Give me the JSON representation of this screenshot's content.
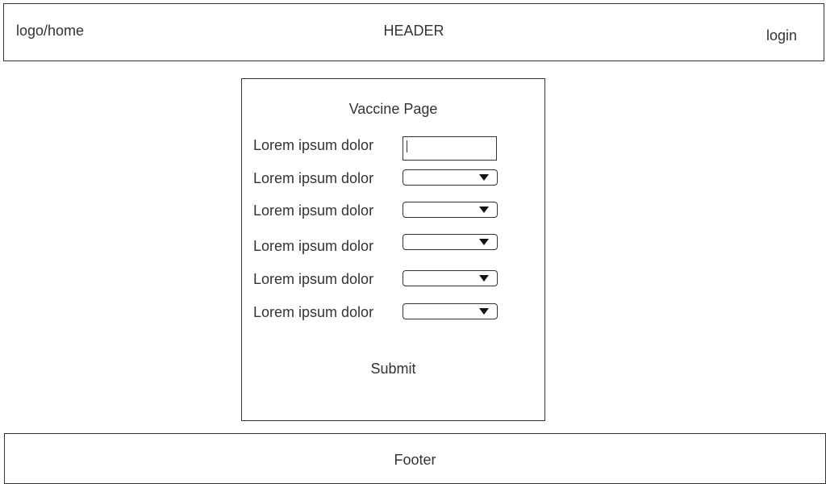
{
  "header": {
    "logo_label": "logo/home",
    "title": "HEADER",
    "login_label": "login"
  },
  "form": {
    "title": "Vaccine Page",
    "rows": [
      {
        "label": "Lorem ipsum dolor",
        "control": "text",
        "value": ""
      },
      {
        "label": "Lorem ipsum dolor",
        "control": "select",
        "value": ""
      },
      {
        "label": "Lorem ipsum dolor",
        "control": "select",
        "value": ""
      },
      {
        "label": "Lorem ipsum dolor",
        "control": "select",
        "value": ""
      },
      {
        "label": "Lorem ipsum dolor",
        "control": "select",
        "value": ""
      },
      {
        "label": "Lorem ipsum dolor",
        "control": "select",
        "value": ""
      }
    ],
    "submit_label": "Submit"
  },
  "footer": {
    "label": "Footer"
  },
  "icons": {
    "dropdown": "chevron-down-icon"
  },
  "colors": {
    "border": "#333333",
    "text": "#333333",
    "background": "#ffffff"
  }
}
